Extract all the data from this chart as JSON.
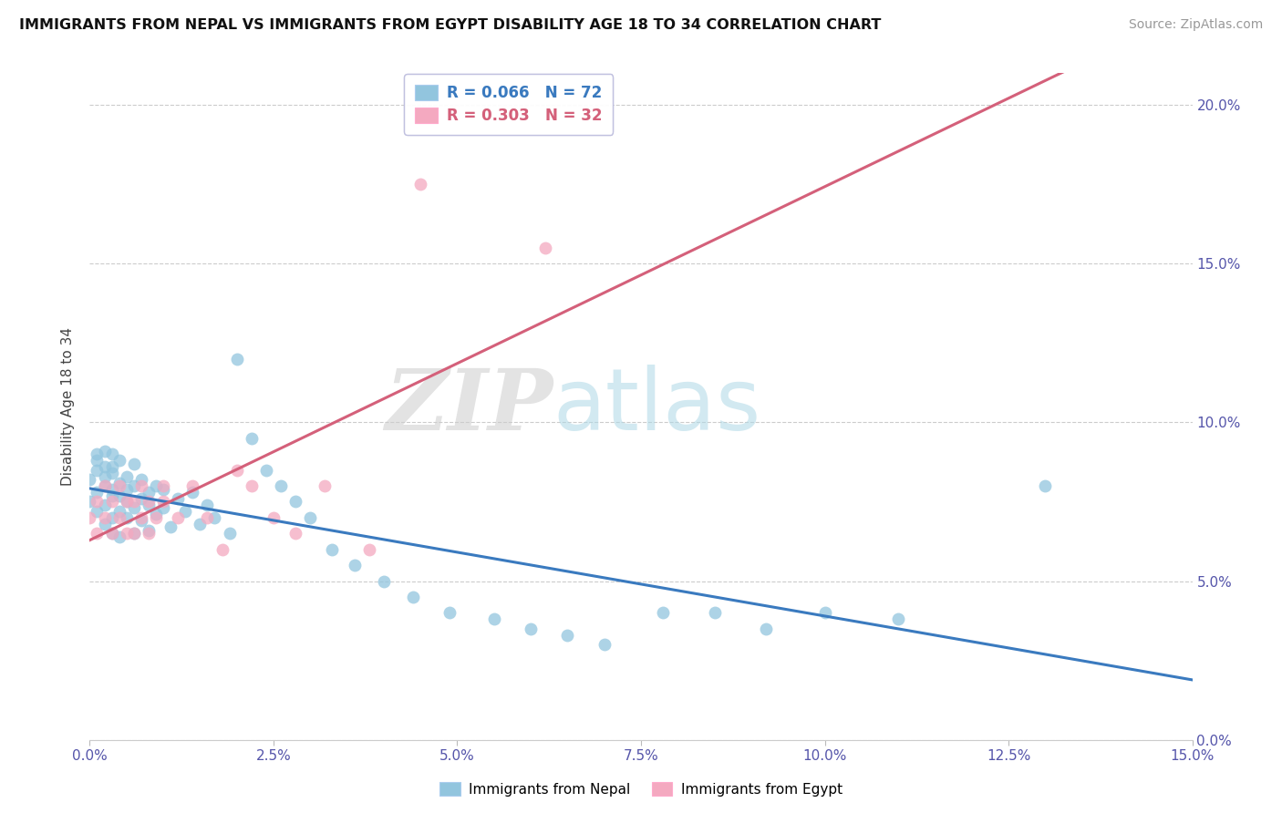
{
  "title": "IMMIGRANTS FROM NEPAL VS IMMIGRANTS FROM EGYPT DISABILITY AGE 18 TO 34 CORRELATION CHART",
  "source": "Source: ZipAtlas.com",
  "ylabel": "Disability Age 18 to 34",
  "xlim": [
    0.0,
    0.15
  ],
  "ylim": [
    0.0,
    0.21
  ],
  "xticks": [
    0.0,
    0.025,
    0.05,
    0.075,
    0.1,
    0.125,
    0.15
  ],
  "yticks": [
    0.0,
    0.05,
    0.1,
    0.15,
    0.2
  ],
  "nepal_R": 0.066,
  "nepal_N": 72,
  "egypt_R": 0.303,
  "egypt_N": 32,
  "nepal_color": "#92c5de",
  "egypt_color": "#f4a9c0",
  "nepal_line_color": "#3a7abf",
  "egypt_line_color": "#d4607a",
  "background_color": "#ffffff",
  "nepal_x": [
    0.0,
    0.0,
    0.001,
    0.001,
    0.001,
    0.001,
    0.001,
    0.002,
    0.002,
    0.002,
    0.002,
    0.002,
    0.002,
    0.003,
    0.003,
    0.003,
    0.003,
    0.003,
    0.003,
    0.003,
    0.004,
    0.004,
    0.004,
    0.004,
    0.004,
    0.005,
    0.005,
    0.005,
    0.005,
    0.006,
    0.006,
    0.006,
    0.006,
    0.007,
    0.007,
    0.007,
    0.008,
    0.008,
    0.008,
    0.009,
    0.009,
    0.01,
    0.01,
    0.011,
    0.012,
    0.013,
    0.014,
    0.015,
    0.016,
    0.017,
    0.019,
    0.02,
    0.022,
    0.024,
    0.026,
    0.028,
    0.03,
    0.033,
    0.036,
    0.04,
    0.044,
    0.049,
    0.055,
    0.06,
    0.065,
    0.07,
    0.078,
    0.085,
    0.092,
    0.1,
    0.11,
    0.13
  ],
  "nepal_y": [
    0.075,
    0.082,
    0.078,
    0.085,
    0.09,
    0.072,
    0.088,
    0.08,
    0.086,
    0.074,
    0.091,
    0.068,
    0.083,
    0.077,
    0.084,
    0.07,
    0.09,
    0.065,
    0.079,
    0.086,
    0.072,
    0.081,
    0.077,
    0.088,
    0.064,
    0.075,
    0.083,
    0.07,
    0.079,
    0.073,
    0.08,
    0.087,
    0.065,
    0.076,
    0.082,
    0.069,
    0.074,
    0.078,
    0.066,
    0.071,
    0.08,
    0.073,
    0.079,
    0.067,
    0.076,
    0.072,
    0.078,
    0.068,
    0.074,
    0.07,
    0.065,
    0.12,
    0.095,
    0.085,
    0.08,
    0.075,
    0.07,
    0.06,
    0.055,
    0.05,
    0.045,
    0.04,
    0.038,
    0.035,
    0.033,
    0.03,
    0.04,
    0.04,
    0.035,
    0.04,
    0.038,
    0.08
  ],
  "egypt_x": [
    0.0,
    0.001,
    0.001,
    0.002,
    0.002,
    0.003,
    0.003,
    0.004,
    0.004,
    0.005,
    0.005,
    0.006,
    0.006,
    0.007,
    0.007,
    0.008,
    0.008,
    0.009,
    0.01,
    0.01,
    0.012,
    0.014,
    0.016,
    0.018,
    0.02,
    0.022,
    0.025,
    0.028,
    0.032,
    0.038,
    0.045,
    0.062
  ],
  "egypt_y": [
    0.07,
    0.075,
    0.065,
    0.08,
    0.07,
    0.075,
    0.065,
    0.08,
    0.07,
    0.075,
    0.065,
    0.075,
    0.065,
    0.08,
    0.07,
    0.075,
    0.065,
    0.07,
    0.08,
    0.075,
    0.07,
    0.08,
    0.07,
    0.06,
    0.085,
    0.08,
    0.07,
    0.065,
    0.08,
    0.06,
    0.175,
    0.155
  ]
}
